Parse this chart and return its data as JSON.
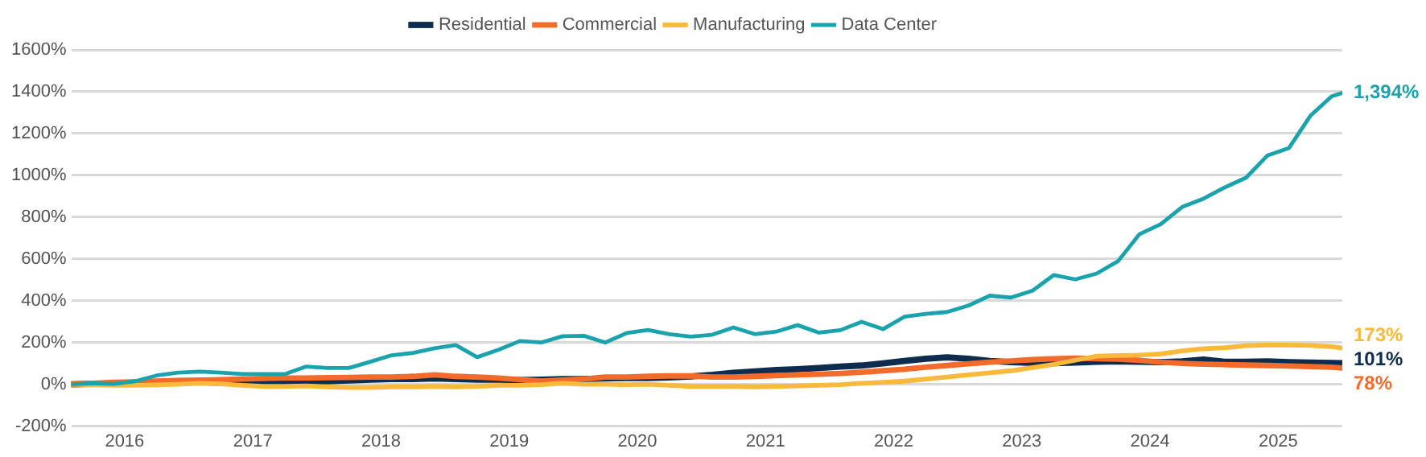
{
  "chart_data": {
    "type": "line",
    "x": [
      "2015-08",
      "2015-10",
      "2015-12",
      "2016-02",
      "2016-04",
      "2016-06",
      "2016-08",
      "2016-10",
      "2016-12",
      "2017-02",
      "2017-04",
      "2017-06",
      "2017-08",
      "2017-10",
      "2017-12",
      "2018-02",
      "2018-04",
      "2018-06",
      "2018-08",
      "2018-10",
      "2018-12",
      "2019-02",
      "2019-04",
      "2019-06",
      "2019-08",
      "2019-10",
      "2019-12",
      "2020-02",
      "2020-04",
      "2020-06",
      "2020-08",
      "2020-10",
      "2020-12",
      "2021-02",
      "2021-04",
      "2021-06",
      "2021-08",
      "2021-10",
      "2021-12",
      "2022-02",
      "2022-04",
      "2022-06",
      "2022-08",
      "2022-10",
      "2022-12",
      "2023-02",
      "2023-04",
      "2023-06",
      "2023-08",
      "2023-10",
      "2023-12",
      "2024-02",
      "2024-04",
      "2024-06",
      "2024-08",
      "2024-10",
      "2024-12",
      "2025-02",
      "2025-04",
      "2025-06",
      "2025-07"
    ],
    "series": [
      {
        "name": "Residential",
        "color": "#0e2d4e",
        "values": [
          0,
          2,
          3,
          5,
          8,
          10,
          10,
          8,
          5,
          8,
          8,
          12,
          15,
          18,
          22,
          25,
          25,
          28,
          25,
          22,
          22,
          20,
          22,
          25,
          25,
          28,
          30,
          30,
          33,
          38,
          45,
          55,
          62,
          68,
          72,
          78,
          85,
          90,
          100,
          112,
          122,
          129,
          122,
          112,
          106,
          102,
          101,
          104,
          108,
          110,
          108,
          106,
          110,
          118,
          108,
          108,
          110,
          106,
          104,
          102,
          101
        ],
        "value_labels": [
          null,
          null,
          null,
          null,
          null,
          null,
          null,
          null,
          null,
          null,
          null,
          null,
          null,
          null,
          null,
          null,
          null,
          null,
          null,
          null,
          null,
          null,
          null,
          null,
          null,
          null,
          null,
          null,
          null,
          null,
          null,
          null,
          null,
          null,
          null,
          null,
          null,
          null,
          null,
          null,
          null,
          null,
          null,
          null,
          null,
          null,
          null,
          null,
          null,
          null,
          null,
          null,
          null,
          null,
          null,
          null,
          null,
          null,
          null,
          null,
          "101%"
        ]
      },
      {
        "name": "Commercial",
        "color": "#f26b2b",
        "values": [
          0,
          5,
          10,
          12,
          15,
          18,
          20,
          22,
          25,
          28,
          30,
          30,
          32,
          33,
          35,
          35,
          38,
          45,
          38,
          35,
          30,
          22,
          15,
          20,
          25,
          35,
          35,
          38,
          40,
          40,
          35,
          35,
          38,
          42,
          45,
          48,
          52,
          58,
          65,
          72,
          82,
          90,
          98,
          106,
          112,
          118,
          122,
          125,
          122,
          120,
          115,
          106,
          100,
          96,
          94,
          92,
          90,
          88,
          85,
          82,
          78
        ],
        "value_labels": [
          null,
          null,
          null,
          null,
          null,
          null,
          null,
          null,
          null,
          null,
          null,
          null,
          null,
          null,
          null,
          null,
          null,
          null,
          null,
          null,
          null,
          null,
          null,
          null,
          null,
          null,
          null,
          null,
          null,
          null,
          null,
          null,
          null,
          null,
          null,
          null,
          null,
          null,
          null,
          null,
          null,
          null,
          null,
          null,
          null,
          null,
          null,
          null,
          null,
          null,
          null,
          null,
          null,
          null,
          null,
          null,
          null,
          null,
          null,
          null,
          "78%"
        ]
      },
      {
        "name": "Manufacturing",
        "color": "#f9b93a",
        "values": [
          0,
          -3,
          -5,
          -5,
          -3,
          0,
          5,
          2,
          -5,
          -10,
          -10,
          -8,
          -12,
          -15,
          -15,
          -12,
          -12,
          -10,
          -12,
          -10,
          -5,
          -5,
          -2,
          5,
          0,
          0,
          -2,
          0,
          -5,
          -10,
          -10,
          -10,
          -12,
          -10,
          -8,
          -5,
          -2,
          5,
          10,
          15,
          25,
          35,
          45,
          55,
          65,
          80,
          95,
          115,
          135,
          138,
          140,
          145,
          160,
          170,
          175,
          185,
          188,
          188,
          186,
          180,
          173
        ],
        "value_labels": [
          null,
          null,
          null,
          null,
          null,
          null,
          null,
          null,
          null,
          null,
          null,
          null,
          null,
          null,
          null,
          null,
          null,
          null,
          null,
          null,
          null,
          null,
          null,
          null,
          null,
          null,
          null,
          null,
          null,
          null,
          null,
          null,
          null,
          null,
          null,
          null,
          null,
          null,
          null,
          null,
          null,
          null,
          null,
          null,
          null,
          null,
          null,
          null,
          null,
          null,
          null,
          null,
          null,
          null,
          null,
          null,
          null,
          null,
          null,
          null,
          "173%"
        ]
      },
      {
        "name": "Data Center",
        "color": "#1aa3ad",
        "values": [
          0,
          5,
          2,
          15,
          42,
          56,
          61,
          56,
          49,
          49,
          49,
          85,
          78,
          78,
          108,
          139,
          150,
          172,
          188,
          130,
          165,
          207,
          200,
          230,
          232,
          200,
          245,
          260,
          240,
          228,
          237,
          272,
          240,
          252,
          283,
          247,
          259,
          299,
          264,
          323,
          337,
          346,
          377,
          424,
          415,
          448,
          523,
          502,
          530,
          589,
          718,
          766,
          848,
          888,
          942,
          989,
          1095,
          1130,
          1284,
          1378,
          1394
        ],
        "value_labels": [
          null,
          null,
          null,
          null,
          null,
          null,
          null,
          null,
          null,
          null,
          null,
          null,
          null,
          null,
          null,
          null,
          null,
          null,
          null,
          null,
          null,
          null,
          null,
          null,
          null,
          null,
          null,
          null,
          null,
          null,
          null,
          null,
          null,
          null,
          null,
          null,
          null,
          null,
          null,
          null,
          null,
          null,
          null,
          null,
          null,
          null,
          null,
          null,
          null,
          null,
          null,
          null,
          null,
          null,
          null,
          null,
          null,
          null,
          null,
          null,
          "1,394%"
        ]
      }
    ],
    "xlim": [
      "2015-08",
      "2025-07"
    ],
    "xticks": [
      "2016",
      "2017",
      "2018",
      "2019",
      "2020",
      "2021",
      "2022",
      "2023",
      "2024",
      "2025"
    ],
    "ylim": [
      -200,
      1600
    ],
    "yticks": [
      {
        "value": -200,
        "label": "-200%"
      },
      {
        "value": 0,
        "label": "0%"
      },
      {
        "value": 200,
        "label": "200%"
      },
      {
        "value": 400,
        "label": "400%"
      },
      {
        "value": 600,
        "label": "600%"
      },
      {
        "value": 800,
        "label": "800%"
      },
      {
        "value": 1000,
        "label": "1000%"
      },
      {
        "value": 1200,
        "label": "1200%"
      },
      {
        "value": 1400,
        "label": "1400%"
      },
      {
        "value": 1600,
        "label": "1600%"
      }
    ],
    "grid": "y",
    "legend": "top",
    "marker": "none",
    "line_style": "solid"
  }
}
